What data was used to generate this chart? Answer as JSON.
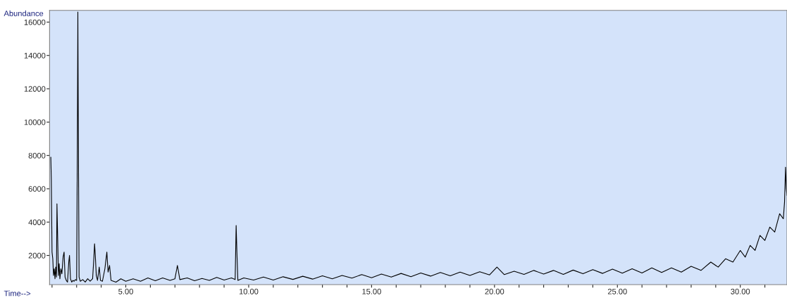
{
  "chart_data": {
    "type": "line",
    "xlabel": "Time-->",
    "ylabel": "Abundance",
    "xlim": [
      1.9,
      31.9
    ],
    "ylim": [
      250,
      16700
    ],
    "xticks": [
      {
        "value": 2,
        "label": null
      },
      {
        "value": 3,
        "label": null
      },
      {
        "value": 4,
        "label": null
      },
      {
        "value": 5,
        "label": "5.00"
      },
      {
        "value": 6,
        "label": null
      },
      {
        "value": 7,
        "label": null
      },
      {
        "value": 8,
        "label": null
      },
      {
        "value": 9,
        "label": null
      },
      {
        "value": 10,
        "label": "10.00"
      },
      {
        "value": 11,
        "label": null
      },
      {
        "value": 12,
        "label": null
      },
      {
        "value": 13,
        "label": null
      },
      {
        "value": 14,
        "label": null
      },
      {
        "value": 15,
        "label": "15.00"
      },
      {
        "value": 16,
        "label": null
      },
      {
        "value": 17,
        "label": null
      },
      {
        "value": 18,
        "label": null
      },
      {
        "value": 19,
        "label": null
      },
      {
        "value": 20,
        "label": "20.00"
      },
      {
        "value": 21,
        "label": null
      },
      {
        "value": 22,
        "label": null
      },
      {
        "value": 23,
        "label": null
      },
      {
        "value": 24,
        "label": null
      },
      {
        "value": 25,
        "label": "25.00"
      },
      {
        "value": 26,
        "label": null
      },
      {
        "value": 27,
        "label": null
      },
      {
        "value": 28,
        "label": null
      },
      {
        "value": 29,
        "label": null
      },
      {
        "value": 30,
        "label": "30.00"
      },
      {
        "value": 31,
        "label": null
      }
    ],
    "yticks": [
      2000,
      4000,
      6000,
      8000,
      10000,
      12000,
      14000,
      16000
    ],
    "grid": false,
    "legend": false,
    "marker": "none",
    "line_style": "solid",
    "series": [
      {
        "color": "#000000",
        "x": [
          1.95,
          1.97,
          2.0,
          2.03,
          2.06,
          2.09,
          2.12,
          2.15,
          2.18,
          2.2,
          2.23,
          2.26,
          2.29,
          2.32,
          2.36,
          2.4,
          2.45,
          2.49,
          2.53,
          2.58,
          2.63,
          2.68,
          2.71,
          2.75,
          2.8,
          2.85,
          2.9,
          2.95,
          3.0,
          3.03,
          3.05,
          3.07,
          3.1,
          3.15,
          3.25,
          3.35,
          3.45,
          3.55,
          3.65,
          3.7,
          3.73,
          3.76,
          3.8,
          3.85,
          3.92,
          3.97,
          4.05,
          4.15,
          4.23,
          4.28,
          4.34,
          4.4,
          4.6,
          4.8,
          5.0,
          5.3,
          5.6,
          5.9,
          6.2,
          6.5,
          6.8,
          7.0,
          7.1,
          7.2,
          7.5,
          7.8,
          8.1,
          8.4,
          8.7,
          9.0,
          9.3,
          9.45,
          9.49,
          9.52,
          9.56,
          9.8,
          10.2,
          10.6,
          11.0,
          11.4,
          11.8,
          12.2,
          12.6,
          13.0,
          13.4,
          13.8,
          14.2,
          14.6,
          15.0,
          15.4,
          15.8,
          16.2,
          16.6,
          17.0,
          17.4,
          17.8,
          18.2,
          18.6,
          19.0,
          19.4,
          19.8,
          20.1,
          20.4,
          20.8,
          21.2,
          21.6,
          22.0,
          22.4,
          22.8,
          23.2,
          23.6,
          24.0,
          24.4,
          24.8,
          25.2,
          25.6,
          26.0,
          26.4,
          26.8,
          27.2,
          27.6,
          28.0,
          28.4,
          28.8,
          29.1,
          29.4,
          29.7,
          30.0,
          30.2,
          30.4,
          30.6,
          30.8,
          31.0,
          31.2,
          31.4,
          31.6,
          31.75,
          31.8,
          31.84,
          31.87,
          31.9
        ],
        "values": [
          7900,
          6600,
          2200,
          1800,
          800,
          1200,
          600,
          1300,
          700,
          5100,
          3000,
          800,
          1500,
          600,
          1200,
          900,
          1900,
          2200,
          700,
          500,
          400,
          1600,
          2000,
          600,
          400,
          500,
          450,
          550,
          500,
          8500,
          16600,
          9400,
          700,
          450,
          550,
          400,
          600,
          450,
          600,
          1800,
          2700,
          2000,
          800,
          500,
          1300,
          500,
          450,
          1200,
          2200,
          1000,
          1400,
          500,
          400,
          600,
          450,
          600,
          450,
          650,
          480,
          650,
          500,
          600,
          1400,
          550,
          650,
          480,
          620,
          500,
          680,
          520,
          650,
          550,
          3800,
          2200,
          500,
          650,
          520,
          700,
          520,
          720,
          560,
          750,
          580,
          780,
          600,
          800,
          640,
          850,
          660,
          880,
          700,
          920,
          720,
          950,
          760,
          980,
          780,
          1000,
          800,
          1020,
          830,
          1300,
          850,
          1050,
          860,
          1100,
          880,
          1100,
          860,
          1120,
          900,
          1150,
          920,
          1180,
          940,
          1200,
          950,
          1250,
          980,
          1250,
          1000,
          1350,
          1100,
          1600,
          1300,
          1800,
          1600,
          2300,
          1900,
          2600,
          2300,
          3200,
          2900,
          3700,
          3400,
          4500,
          4200,
          5200,
          7300,
          6000,
          5600
        ]
      }
    ]
  }
}
